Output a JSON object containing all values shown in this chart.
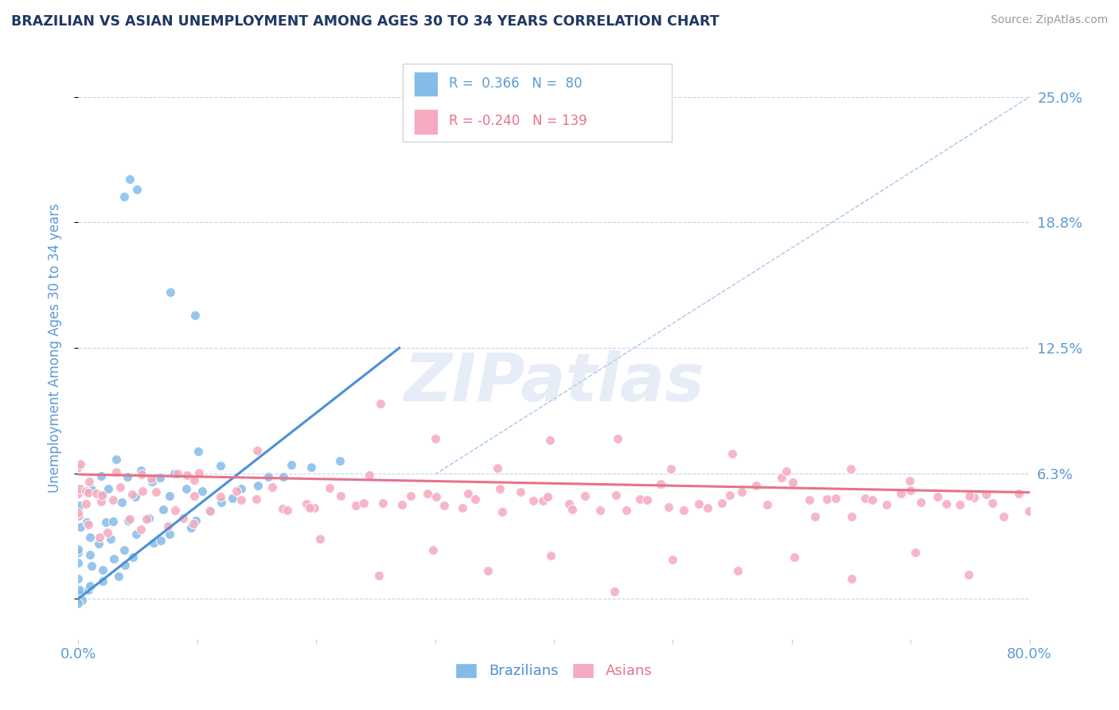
{
  "title": "BRAZILIAN VS ASIAN UNEMPLOYMENT AMONG AGES 30 TO 34 YEARS CORRELATION CHART",
  "source": "Source: ZipAtlas.com",
  "ylabel": "Unemployment Among Ages 30 to 34 years",
  "xlim": [
    0.0,
    0.8
  ],
  "ylim": [
    -0.02,
    0.27
  ],
  "ytick_positions": [
    0.0,
    0.0625,
    0.125,
    0.1875,
    0.25
  ],
  "ytick_labels_right": [
    "",
    "6.3%",
    "12.5%",
    "18.8%",
    "25.0%"
  ],
  "blue_color": "#85BBE8",
  "pink_color": "#F5AABF",
  "blue_line_color": "#4A90D9",
  "pink_line_color": "#E8728A",
  "dashed_line_color": "#A0C0E8",
  "legend_R_blue": "0.366",
  "legend_N_blue": "80",
  "legend_R_pink": "-0.240",
  "legend_N_pink": "139",
  "legend_label_blue": "Brazilians",
  "legend_label_pink": "Asians",
  "watermark": "ZIPatlas",
  "title_color": "#1F3864",
  "axis_label_color": "#5B9BD5",
  "right_tick_color": "#5B9BD5",
  "legend_text_color": "#5B9BD5",
  "background_color": "#FFFFFF",
  "grid_color": "#C8D4E8",
  "blue_x": [
    0.0,
    0.0,
    0.0,
    0.0,
    0.0,
    0.0,
    0.0,
    0.0,
    0.0,
    0.0,
    0.01,
    0.01,
    0.01,
    0.01,
    0.01,
    0.01,
    0.01,
    0.02,
    0.02,
    0.02,
    0.02,
    0.02,
    0.02,
    0.03,
    0.03,
    0.03,
    0.03,
    0.03,
    0.03,
    0.04,
    0.04,
    0.04,
    0.04,
    0.04,
    0.05,
    0.05,
    0.05,
    0.05,
    0.06,
    0.06,
    0.06,
    0.07,
    0.07,
    0.07,
    0.08,
    0.08,
    0.08,
    0.09,
    0.09,
    0.1,
    0.1,
    0.1,
    0.11,
    0.12,
    0.12,
    0.13,
    0.14,
    0.15,
    0.16,
    0.17,
    0.18,
    0.2,
    0.22,
    0.04,
    0.05,
    0.04,
    0.08,
    0.1
  ],
  "blue_y": [
    0.0,
    0.0,
    0.0,
    0.005,
    0.01,
    0.015,
    0.02,
    0.025,
    0.035,
    0.045,
    0.005,
    0.01,
    0.015,
    0.02,
    0.03,
    0.04,
    0.055,
    0.01,
    0.015,
    0.025,
    0.035,
    0.05,
    0.06,
    0.01,
    0.02,
    0.03,
    0.04,
    0.055,
    0.065,
    0.015,
    0.025,
    0.04,
    0.05,
    0.06,
    0.02,
    0.035,
    0.05,
    0.065,
    0.025,
    0.04,
    0.055,
    0.03,
    0.045,
    0.06,
    0.03,
    0.05,
    0.065,
    0.035,
    0.055,
    0.04,
    0.055,
    0.07,
    0.045,
    0.05,
    0.065,
    0.05,
    0.055,
    0.055,
    0.06,
    0.06,
    0.065,
    0.065,
    0.07,
    0.21,
    0.205,
    0.2,
    0.155,
    0.145
  ],
  "pink_x": [
    0.0,
    0.0,
    0.0,
    0.0,
    0.0,
    0.0,
    0.01,
    0.01,
    0.01,
    0.01,
    0.01,
    0.02,
    0.02,
    0.02,
    0.02,
    0.03,
    0.03,
    0.03,
    0.04,
    0.04,
    0.04,
    0.05,
    0.05,
    0.05,
    0.06,
    0.06,
    0.07,
    0.07,
    0.08,
    0.08,
    0.09,
    0.09,
    0.1,
    0.1,
    0.1,
    0.11,
    0.12,
    0.13,
    0.14,
    0.15,
    0.16,
    0.17,
    0.18,
    0.19,
    0.2,
    0.21,
    0.22,
    0.23,
    0.24,
    0.25,
    0.26,
    0.27,
    0.28,
    0.29,
    0.3,
    0.31,
    0.32,
    0.33,
    0.34,
    0.35,
    0.36,
    0.37,
    0.38,
    0.39,
    0.4,
    0.41,
    0.42,
    0.43,
    0.44,
    0.45,
    0.46,
    0.47,
    0.48,
    0.49,
    0.5,
    0.51,
    0.52,
    0.53,
    0.54,
    0.55,
    0.56,
    0.57,
    0.58,
    0.59,
    0.6,
    0.61,
    0.62,
    0.63,
    0.64,
    0.65,
    0.66,
    0.67,
    0.68,
    0.69,
    0.7,
    0.71,
    0.72,
    0.73,
    0.74,
    0.75,
    0.76,
    0.77,
    0.78,
    0.79,
    0.8,
    0.2,
    0.25,
    0.3,
    0.35,
    0.4,
    0.45,
    0.5,
    0.55,
    0.6,
    0.65,
    0.7,
    0.75,
    0.1,
    0.15,
    0.2,
    0.3,
    0.4,
    0.5,
    0.6,
    0.7,
    0.25,
    0.35,
    0.45,
    0.55,
    0.65,
    0.75
  ],
  "pink_y": [
    0.04,
    0.045,
    0.05,
    0.055,
    0.06,
    0.065,
    0.04,
    0.045,
    0.05,
    0.055,
    0.06,
    0.04,
    0.045,
    0.055,
    0.06,
    0.04,
    0.05,
    0.06,
    0.04,
    0.05,
    0.06,
    0.04,
    0.05,
    0.06,
    0.04,
    0.055,
    0.04,
    0.055,
    0.04,
    0.055,
    0.04,
    0.055,
    0.04,
    0.05,
    0.06,
    0.05,
    0.05,
    0.05,
    0.05,
    0.05,
    0.05,
    0.05,
    0.05,
    0.05,
    0.05,
    0.05,
    0.05,
    0.05,
    0.05,
    0.05,
    0.05,
    0.05,
    0.05,
    0.05,
    0.05,
    0.05,
    0.05,
    0.05,
    0.05,
    0.05,
    0.05,
    0.05,
    0.05,
    0.05,
    0.05,
    0.05,
    0.05,
    0.05,
    0.05,
    0.05,
    0.05,
    0.05,
    0.05,
    0.05,
    0.05,
    0.05,
    0.05,
    0.05,
    0.05,
    0.05,
    0.05,
    0.05,
    0.05,
    0.05,
    0.05,
    0.05,
    0.05,
    0.05,
    0.05,
    0.05,
    0.05,
    0.05,
    0.05,
    0.05,
    0.05,
    0.05,
    0.05,
    0.05,
    0.05,
    0.05,
    0.05,
    0.05,
    0.05,
    0.05,
    0.05,
    0.045,
    0.09,
    0.08,
    0.07,
    0.085,
    0.075,
    0.065,
    0.07,
    0.06,
    0.065,
    0.06,
    0.055,
    0.075,
    0.08,
    0.03,
    0.025,
    0.02,
    0.02,
    0.02,
    0.02,
    0.015,
    0.015,
    0.01,
    0.01,
    0.01,
    0.01
  ]
}
